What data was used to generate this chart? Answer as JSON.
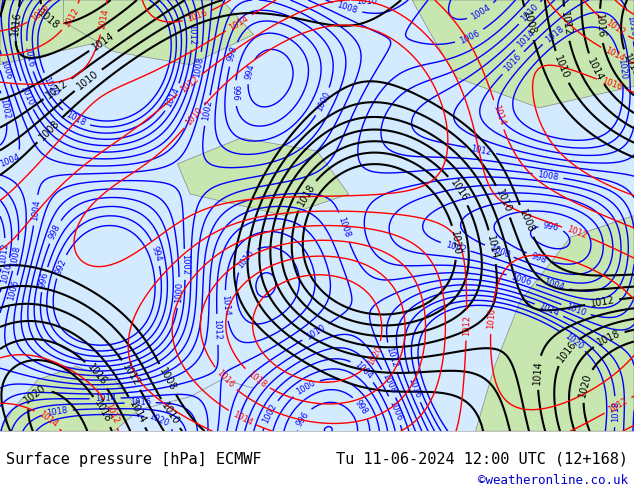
{
  "title_left": "Surface pressure [hPa] ECMWF",
  "title_right": "Tu 11-06-2024 12:00 UTC (12+168)",
  "credit": "©weatheronline.co.uk",
  "credit_color": "#0000cc",
  "bg_color": "#d4eaff",
  "land_color": "#c8e6b0",
  "border_color": "#888888",
  "footer_bg": "#ffffff",
  "footer_text_color": "#000000",
  "contour_blue_color": "#0000ff",
  "contour_black_color": "#000000",
  "contour_red_color": "#ff0000",
  "fig_width": 6.34,
  "fig_height": 4.9,
  "dpi": 100
}
